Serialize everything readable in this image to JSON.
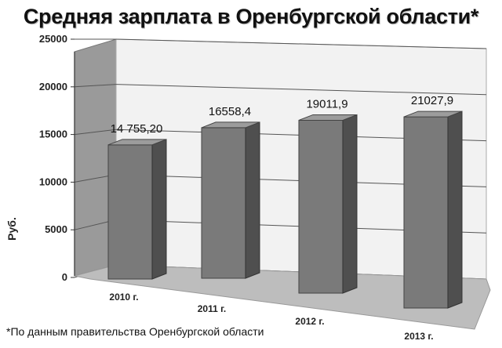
{
  "chart_data": {
    "type": "bar",
    "title": "Средняя зарплата в Оренбургской области*",
    "ylabel": "Руб.",
    "xlabel": "",
    "categories": [
      "2010 г.",
      "2011 г.",
      "2012 г.",
      "2013 г."
    ],
    "values": [
      14755.2,
      16558.4,
      19011.9,
      21027.9
    ],
    "value_labels": [
      "14 755,20",
      "16558,4",
      "19011,9",
      "21027,9"
    ],
    "ylim": [
      0,
      25000
    ],
    "yticks": [
      0,
      5000,
      10000,
      15000,
      20000,
      25000
    ],
    "grid": true,
    "bar_color": "#7a7a7a",
    "wall_color": "#f2f2f2",
    "floor_color": "#bdbdbd"
  },
  "footnote": "*По данным правительства Оренбургской области"
}
